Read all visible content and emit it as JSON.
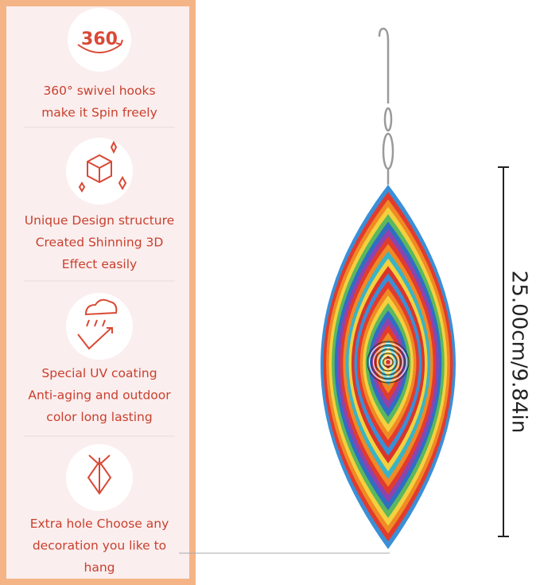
{
  "features": [
    {
      "icon_text": "360",
      "lines": [
        "360° swivel hooks",
        "make it Spin freely"
      ]
    },
    {
      "lines": [
        "Unique Design structure",
        "Created Shinning 3D",
        "Effect easily"
      ]
    },
    {
      "lines": [
        "Special UV coating",
        "Anti-aging and outdoor",
        "color long lasting"
      ]
    },
    {
      "lines": [
        "Extra hole Choose any",
        "decoration you like to",
        "hang"
      ]
    }
  ],
  "dimension": "25.00cm/9.84in"
}
